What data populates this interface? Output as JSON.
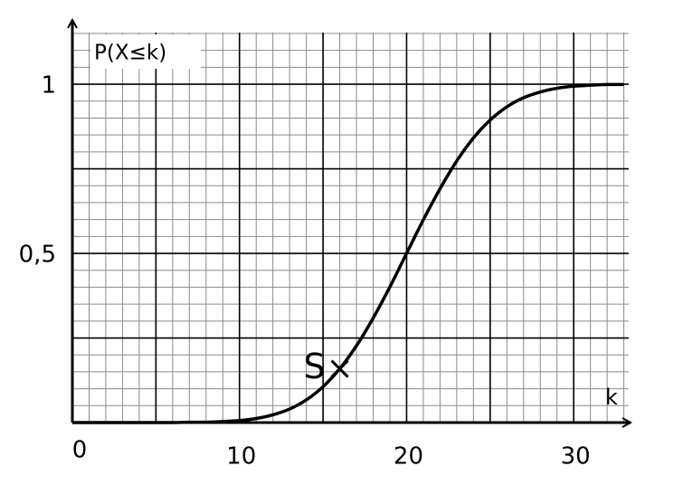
{
  "chart_data": {
    "type": "line",
    "y_label": "P(X≤k)",
    "x_label": "k",
    "x": [
      0,
      1,
      2,
      3,
      4,
      5,
      6,
      7,
      8,
      9,
      10,
      11,
      12,
      13,
      14,
      15,
      16,
      17,
      18,
      19,
      20,
      21,
      22,
      23,
      24,
      25,
      26,
      27,
      28,
      29,
      30,
      31,
      32,
      33
    ],
    "series": [
      {
        "color": "#000000",
        "values": [
          0.0,
          0.0,
          0.0,
          0.0,
          0.0,
          0.0,
          0.0,
          0.001,
          0.001,
          0.003,
          0.006,
          0.012,
          0.023,
          0.04,
          0.067,
          0.106,
          0.159,
          0.227,
          0.309,
          0.401,
          0.5,
          0.599,
          0.691,
          0.773,
          0.841,
          0.894,
          0.933,
          0.96,
          0.977,
          0.988,
          0.994,
          0.997,
          0.999,
          0.999
        ]
      }
    ],
    "points": [
      {
        "label": "S",
        "x": 16,
        "y": 0.159
      }
    ],
    "xlim": [
      0,
      33.4
    ],
    "ylim": [
      0,
      1.19
    ],
    "xticks": [
      0,
      10,
      20,
      30
    ],
    "yticks": [
      {
        "value": 0.5,
        "label": "0,5"
      },
      1
    ],
    "grid_major": {
      "x": 5,
      "y": 0.25
    },
    "grid_minor": {
      "x": 1,
      "y": 0.05
    }
  }
}
